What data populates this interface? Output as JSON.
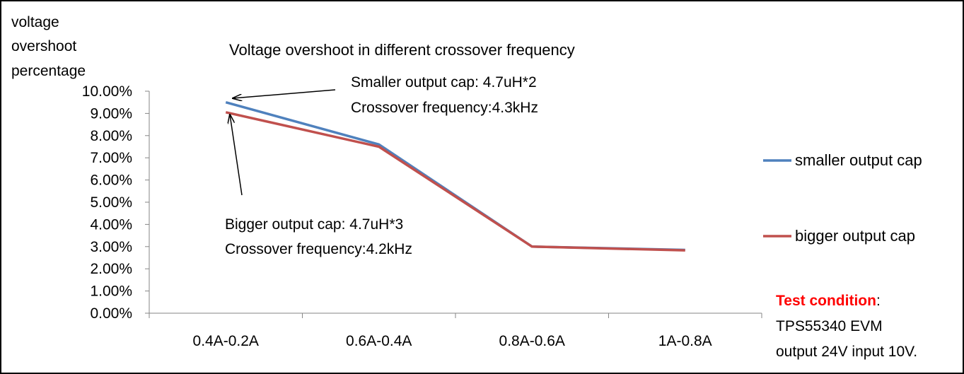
{
  "chart_data": {
    "type": "line",
    "title": "Voltage overshoot in different crossover frequency",
    "ylabel": [
      "voltage",
      "overshoot",
      "percentage"
    ],
    "xlabel": "",
    "categories": [
      "0.4A-0.2A",
      "0.6A-0.4A",
      "0.8A-0.6A",
      "1A-0.8A"
    ],
    "ylim": [
      0,
      0.1
    ],
    "yticks": [
      0.0,
      0.01,
      0.02,
      0.03,
      0.04,
      0.05,
      0.06,
      0.07,
      0.08,
      0.09,
      0.1
    ],
    "ytick_labels": [
      "0.00%",
      "1.00%",
      "2.00%",
      "3.00%",
      "4.00%",
      "5.00%",
      "6.00%",
      "7.00%",
      "8.00%",
      "9.00%",
      "10.00%"
    ],
    "grid": false,
    "legend_position": "right",
    "series": [
      {
        "name": "smaller output cap",
        "color": "#4f81bd",
        "values": [
          0.095,
          0.076,
          0.03,
          0.0285
        ]
      },
      {
        "name": "bigger output cap",
        "color": "#c0504d",
        "values": [
          0.0905,
          0.075,
          0.03,
          0.0283
        ]
      }
    ],
    "annotations": [
      {
        "lines": [
          "Smaller output cap: 4.7uH*2",
          "Crossover frequency:4.3kHz"
        ]
      },
      {
        "lines": [
          "Bigger output cap: 4.7uH*3",
          "Crossover frequency:4.2kHz"
        ]
      }
    ]
  },
  "test_condition": {
    "heading": "Test condition",
    "colon": ":",
    "lines": [
      "TPS55340 EVM",
      "output 24V input 10V."
    ],
    "heading_color": "#ff0000"
  }
}
